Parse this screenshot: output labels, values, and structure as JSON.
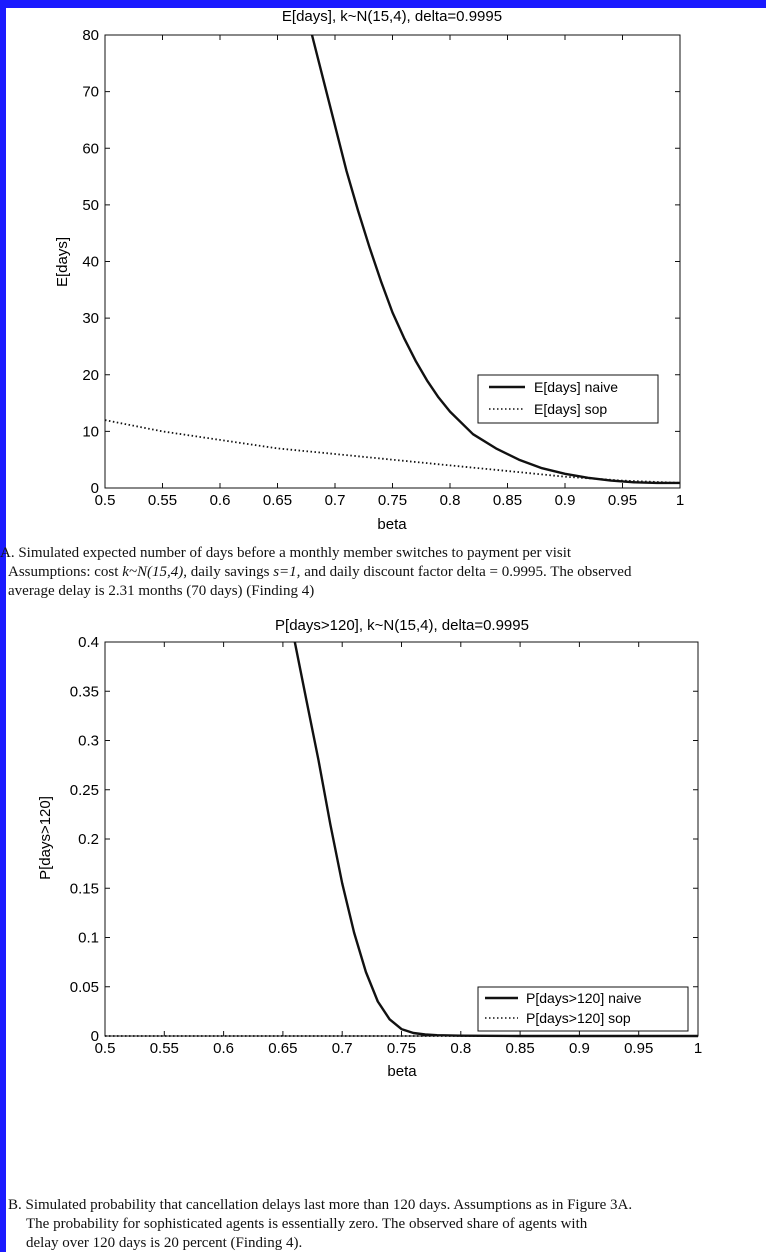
{
  "chart_data": [
    {
      "type": "line",
      "title": "E[days], k~N(15,4), delta=0.9995",
      "xlabel": "beta",
      "ylabel": "E[days]",
      "xlim": [
        0.5,
        1
      ],
      "ylim": [
        0,
        80
      ],
      "xticks": [
        "0.5",
        "0.55",
        "0.6",
        "0.65",
        "0.7",
        "0.75",
        "0.8",
        "0.85",
        "0.9",
        "0.95",
        "1"
      ],
      "yticks": [
        "0",
        "10",
        "20",
        "30",
        "40",
        "50",
        "60",
        "70",
        "80"
      ],
      "legend_position": "lower-right",
      "grid": false,
      "series": [
        {
          "name": "E[days] naive",
          "style": "solid",
          "x": [
            0.68,
            0.69,
            0.7,
            0.71,
            0.72,
            0.73,
            0.74,
            0.75,
            0.76,
            0.77,
            0.78,
            0.79,
            0.8,
            0.82,
            0.84,
            0.86,
            0.88,
            0.9,
            0.92,
            0.94,
            0.96,
            0.98,
            1.0
          ],
          "y": [
            80,
            72,
            64,
            56,
            49,
            42.5,
            36.5,
            31,
            26.5,
            22.5,
            19,
            16,
            13.5,
            9.5,
            7,
            5,
            3.5,
            2.5,
            1.8,
            1.3,
            1.0,
            0.9,
            0.9
          ]
        },
        {
          "name": "E[days] sop",
          "style": "dotted",
          "x": [
            0.5,
            0.55,
            0.6,
            0.65,
            0.7,
            0.75,
            0.8,
            0.85,
            0.9,
            0.95,
            1.0
          ],
          "y": [
            12,
            10,
            8.5,
            7,
            6,
            5,
            4,
            3,
            2,
            1.3,
            0.9
          ]
        }
      ]
    },
    {
      "type": "line",
      "title": "P[days>120], k~N(15,4), delta=0.9995",
      "xlabel": "beta",
      "ylabel": "P[days>120]",
      "xlim": [
        0.5,
        1
      ],
      "ylim": [
        0,
        0.4
      ],
      "xticks": [
        "0.5",
        "0.55",
        "0.6",
        "0.65",
        "0.7",
        "0.75",
        "0.8",
        "0.85",
        "0.9",
        "0.95",
        "1"
      ],
      "yticks": [
        "0",
        "0.05",
        "0.1",
        "0.15",
        "0.2",
        "0.25",
        "0.3",
        "0.35",
        "0.4"
      ],
      "legend_position": "lower-right",
      "grid": false,
      "series": [
        {
          "name": "P[days>120] naive",
          "style": "solid",
          "x": [
            0.66,
            0.67,
            0.68,
            0.69,
            0.7,
            0.71,
            0.72,
            0.73,
            0.74,
            0.75,
            0.76,
            0.77,
            0.78,
            0.8,
            0.85,
            0.9,
            0.95,
            1.0
          ],
          "y": [
            0.4,
            0.34,
            0.28,
            0.215,
            0.155,
            0.105,
            0.065,
            0.035,
            0.017,
            0.007,
            0.003,
            0.0015,
            0.0008,
            0.0003,
            0.0,
            0.0,
            0.0,
            0.0
          ]
        },
        {
          "name": "P[days>120] sop",
          "style": "dotted",
          "x": [
            0.5,
            0.6,
            0.7,
            0.8,
            0.9,
            1.0
          ],
          "y": [
            0.0,
            0.0,
            0.0,
            0.0,
            0.0,
            0.0
          ]
        }
      ]
    }
  ],
  "captions": {
    "a": {
      "line1": "A. Simulated expected number of days before a monthly member switches to payment per visit",
      "line2_pre": "Assumptions: cost ",
      "line2_k": "k~N(15,4)",
      "line2_mid": ", daily savings ",
      "line2_s": "s=1,",
      "line2_post": " and daily discount factor delta = 0.9995. The observed",
      "line3": "average delay is 2.31 months (70 days) (Finding 4)"
    },
    "b": {
      "line1": "B. Simulated probability that cancellation delays last more than 120 days. Assumptions as in Figure 3A.",
      "line2": "The probability for sophisticated agents is essentially zero. The observed share of agents with",
      "line3": "delay over 120 days is 20 percent (Finding 4)."
    }
  }
}
